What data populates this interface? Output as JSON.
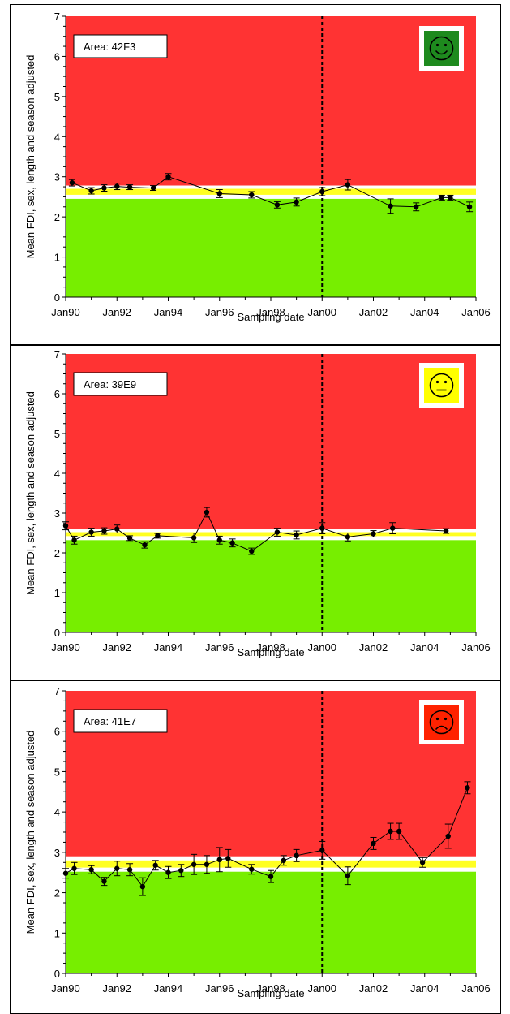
{
  "chart_data": [
    {
      "type": "line",
      "area_label": "Area: 42F3",
      "status_icon": "smiley-happy-icon",
      "status_color": "#1e8a1e",
      "xlabel": "Sampling date",
      "ylabel": "Mean FDI, sex, length and season adjusted",
      "x_tick_labels": [
        "Jan90",
        "Jan92",
        "Jan94",
        "Jan96",
        "Jan98",
        "Jan00",
        "Jan02",
        "Jan04",
        "Jan06"
      ],
      "x_range": [
        "1990-01",
        "2006-01"
      ],
      "y_ticks": [
        "0",
        "1",
        "2",
        "3",
        "4",
        "5",
        "6",
        "7"
      ],
      "ylim": [
        0,
        7
      ],
      "reference_line_x": "2000-01",
      "bands": {
        "green_upper": 2.45,
        "white_upper": 2.55,
        "yellow_upper": 2.7,
        "white2_upper": 2.78
      },
      "band_colors": {
        "green": "#77ee00",
        "yellow": "#ffff22",
        "red": "#ff3333",
        "white": "#ffffff"
      },
      "series": [
        {
          "x": [
            "1990-04",
            "1991-01",
            "1991-07",
            "1992-01",
            "1992-07",
            "1993-06",
            "1994-01",
            "1996-01",
            "1997-04",
            "1998-04",
            "1999-01",
            "2000-01",
            "2001-01",
            "2002-09",
            "2003-09",
            "2004-09",
            "2005-01",
            "2005-10"
          ],
          "y": [
            2.85,
            2.65,
            2.72,
            2.76,
            2.74,
            2.72,
            3.0,
            2.58,
            2.55,
            2.3,
            2.37,
            2.63,
            2.8,
            2.27,
            2.25,
            2.48,
            2.48,
            2.25
          ],
          "err": [
            0.08,
            0.08,
            0.08,
            0.08,
            0.06,
            0.06,
            0.08,
            0.1,
            0.08,
            0.08,
            0.1,
            0.1,
            0.13,
            0.18,
            0.1,
            0.06,
            0.06,
            0.12
          ]
        }
      ]
    },
    {
      "type": "line",
      "area_label": "Area: 39E9",
      "status_icon": "smiley-neutral-icon",
      "status_color": "#ffff00",
      "xlabel": "Sampling date",
      "ylabel": "Mean FDI, sex, length and season adjusted",
      "x_tick_labels": [
        "Jan90",
        "Jan92",
        "Jan94",
        "Jan96",
        "Jan98",
        "Jan00",
        "Jan02",
        "Jan04",
        "Jan06"
      ],
      "x_range": [
        "1990-01",
        "2006-01"
      ],
      "y_ticks": [
        "0",
        "1",
        "2",
        "3",
        "4",
        "5",
        "6",
        "7"
      ],
      "ylim": [
        0,
        7
      ],
      "reference_line_x": "2000-01",
      "bands": {
        "green_upper": 2.32,
        "white_upper": 2.42,
        "yellow_upper": 2.52,
        "white2_upper": 2.6
      },
      "band_colors": {
        "green": "#77ee00",
        "yellow": "#ffff22",
        "red": "#ff3333",
        "white": "#ffffff"
      },
      "series": [
        {
          "x": [
            "1990-01",
            "1990-05",
            "1991-01",
            "1991-07",
            "1992-01",
            "1992-07",
            "1993-02",
            "1993-08",
            "1995-01",
            "1995-07",
            "1996-01",
            "1996-07",
            "1997-04",
            "1998-04",
            "1999-01",
            "2000-01",
            "2001-01",
            "2002-01",
            "2002-10",
            "2004-11"
          ],
          "y": [
            2.68,
            2.32,
            2.52,
            2.55,
            2.6,
            2.37,
            2.2,
            2.43,
            2.38,
            3.02,
            2.32,
            2.25,
            2.04,
            2.52,
            2.45,
            2.62,
            2.4,
            2.48,
            2.62,
            2.55
          ],
          "err": [
            0.1,
            0.1,
            0.1,
            0.08,
            0.1,
            0.06,
            0.08,
            0.06,
            0.12,
            0.12,
            0.1,
            0.1,
            0.08,
            0.1,
            0.1,
            0.14,
            0.1,
            0.08,
            0.14,
            0.06
          ]
        }
      ]
    },
    {
      "type": "line",
      "area_label": "Area: 41E7",
      "status_icon": "smiley-sad-icon",
      "status_color": "#ff2200",
      "xlabel": "Sampling date",
      "ylabel": "Mean FDI, sex, length and season adjusted",
      "x_tick_labels": [
        "Jan90",
        "Jan92",
        "Jan94",
        "Jan96",
        "Jan98",
        "Jan00",
        "Jan02",
        "Jan04",
        "Jan06"
      ],
      "x_range": [
        "1990-01",
        "2006-01"
      ],
      "y_ticks": [
        "0",
        "1",
        "2",
        "3",
        "4",
        "5",
        "6",
        "7"
      ],
      "ylim": [
        0,
        7
      ],
      "reference_line_x": "2000-01",
      "bands": {
        "green_upper": 2.52,
        "white_upper": 2.62,
        "yellow_upper": 2.8,
        "white2_upper": 2.9
      },
      "band_colors": {
        "green": "#77ee00",
        "yellow": "#ffff22",
        "red": "#ff3333",
        "white": "#ffffff"
      },
      "series": [
        {
          "x": [
            "1990-01",
            "1990-05",
            "1991-01",
            "1991-07",
            "1992-01",
            "1992-07",
            "1993-01",
            "1993-07",
            "1994-01",
            "1994-07",
            "1995-01",
            "1995-07",
            "1996-01",
            "1996-05",
            "1997-04",
            "1998-01",
            "1998-07",
            "1999-01",
            "2000-01",
            "2001-01",
            "2002-01",
            "2002-09",
            "2003-01",
            "2003-12",
            "2004-12",
            "2005-09"
          ],
          "y": [
            2.48,
            2.6,
            2.57,
            2.28,
            2.6,
            2.57,
            2.15,
            2.68,
            2.5,
            2.55,
            2.7,
            2.7,
            2.82,
            2.85,
            2.58,
            2.4,
            2.8,
            2.92,
            3.05,
            2.42,
            3.22,
            3.52,
            3.52,
            2.75,
            3.4,
            4.6
          ],
          "err": [
            0.12,
            0.15,
            0.1,
            0.1,
            0.18,
            0.15,
            0.22,
            0.12,
            0.15,
            0.15,
            0.25,
            0.22,
            0.3,
            0.22,
            0.12,
            0.15,
            0.12,
            0.15,
            0.22,
            0.22,
            0.15,
            0.2,
            0.2,
            0.12,
            0.3,
            0.15
          ]
        }
      ]
    }
  ]
}
